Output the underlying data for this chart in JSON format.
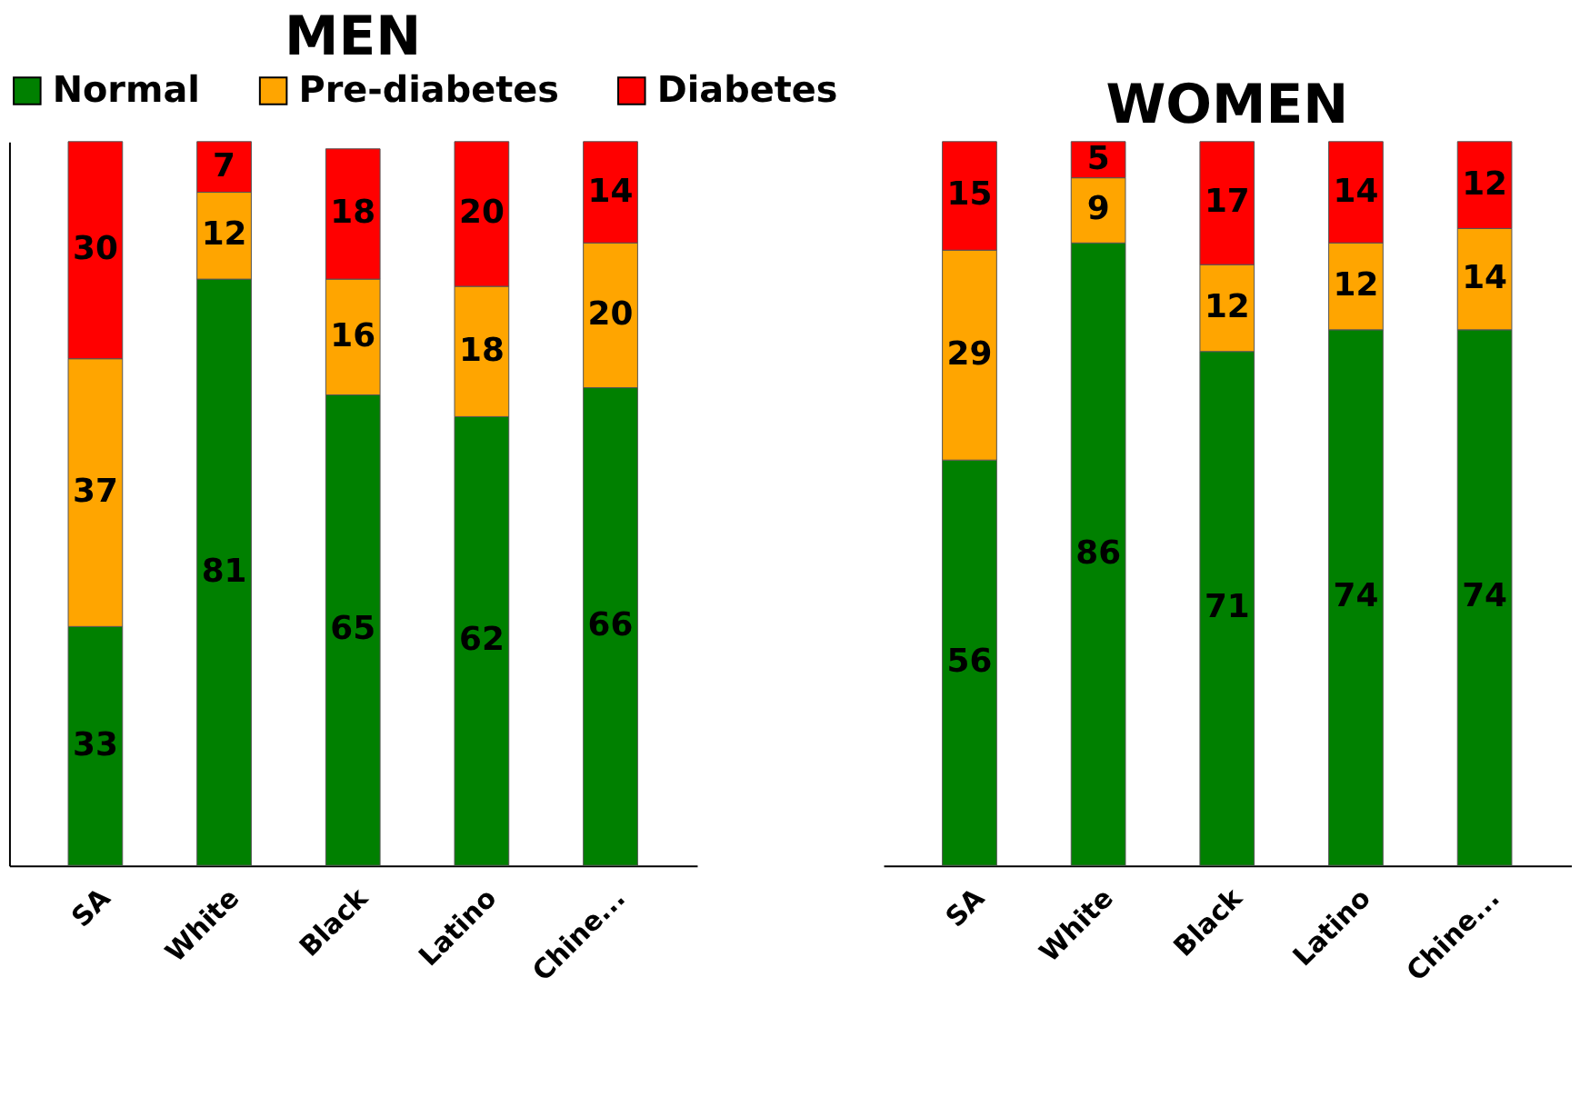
{
  "chart_data": [
    {
      "type": "bar",
      "title": "MEN",
      "categories": [
        "SA",
        "White",
        "Black",
        "Latino",
        "Chine..."
      ],
      "stacked": true,
      "data_labels": true,
      "legend": "top",
      "tick_labels": "x",
      "series": [
        {
          "name": "Normal",
          "color": "#008000",
          "values": [
            33,
            81,
            65,
            62,
            66
          ]
        },
        {
          "name": "Pre-diabetes",
          "color": "#ffa500",
          "values": [
            37,
            12,
            16,
            18,
            20
          ]
        },
        {
          "name": "Diabetes",
          "color": "#ff0000",
          "values": [
            30,
            7,
            18,
            20,
            14
          ]
        }
      ]
    },
    {
      "type": "bar",
      "title": "WOMEN",
      "categories": [
        "SA",
        "White",
        "Black",
        "Latino",
        "Chine..."
      ],
      "stacked": true,
      "data_labels": true,
      "tick_labels": "x",
      "series": [
        {
          "color": "#008000",
          "values": [
            56,
            86,
            71,
            74,
            74
          ]
        },
        {
          "color": "#ffa500",
          "values": [
            29,
            9,
            12,
            12,
            14
          ]
        },
        {
          "color": "#ff0000",
          "values": [
            15,
            5,
            17,
            14,
            12
          ]
        }
      ]
    }
  ]
}
